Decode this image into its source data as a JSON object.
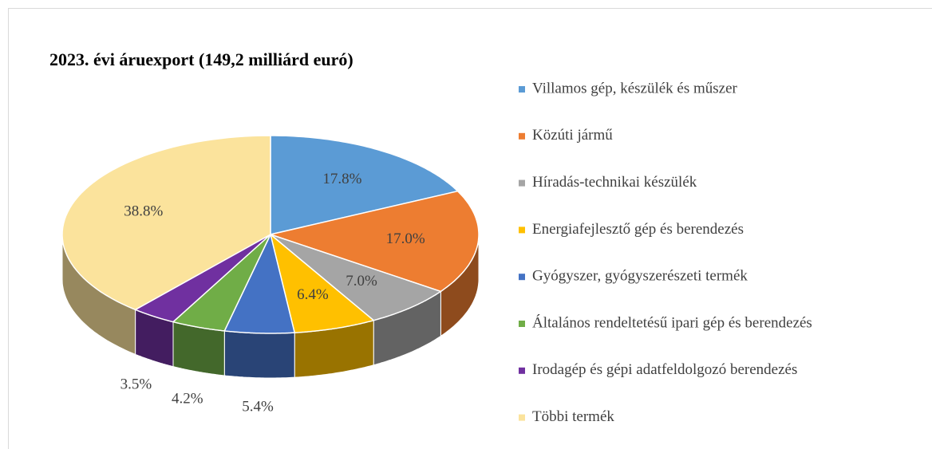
{
  "chart_data": {
    "type": "pie",
    "title": "2023. évi áruexport (149,2 milliárd euró)",
    "categories": [
      "Villamos gép, készülék és műszer",
      "Közúti jármű",
      "Híradás-technikai készülék",
      "Energiafejlesztő gép és berendezés",
      "Gyógyszer, gyógyszerészeti termék",
      "Általános rendeltetésű ipari gép és berendezés",
      "Irodagép és gépi adatfeldolgozó berendezés",
      "Többi termék"
    ],
    "values": [
      17.8,
      17.0,
      7.0,
      6.4,
      5.4,
      4.2,
      3.5,
      38.8
    ],
    "value_labels": [
      "17.8%",
      "17.0%",
      "7.0%",
      "6.4%",
      "5.4%",
      "4.2%",
      "3.5%",
      "38.8%"
    ],
    "colors": [
      "#5b9bd5",
      "#ed7d31",
      "#a5a5a5",
      "#ffc000",
      "#4472c4",
      "#70ad47",
      "#7030a0",
      "#fbe39c"
    ],
    "legend": "right"
  }
}
